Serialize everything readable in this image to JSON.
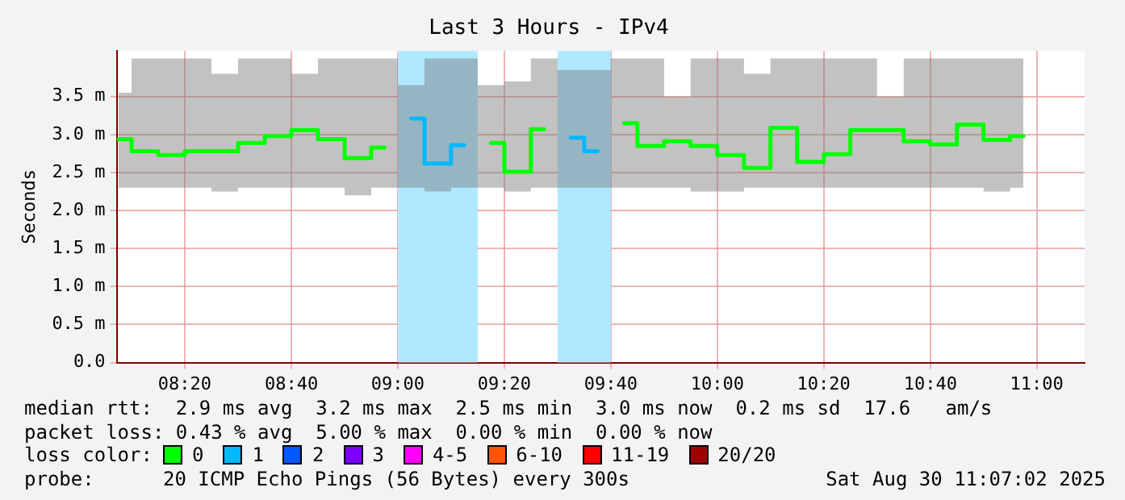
{
  "chart_data": {
    "type": "step",
    "title": "Last 3 Hours - IPv4",
    "ylabel": "Seconds",
    "x": [
      8.125,
      8.208,
      8.292,
      8.375,
      8.458,
      8.542,
      8.625,
      8.708,
      8.792,
      8.875,
      8.958,
      9.042,
      9.125,
      9.208,
      9.292,
      9.375,
      9.458,
      9.542,
      9.625,
      9.708,
      9.792,
      9.875,
      9.958,
      10.042,
      10.125,
      10.208,
      10.292,
      10.375,
      10.458,
      10.542,
      10.625,
      10.708,
      10.792,
      10.875,
      10.958
    ],
    "series": [
      {
        "color": "#00ff00",
        "values": [
          2.94,
          2.78,
          2.73,
          2.78,
          2.78,
          2.89,
          2.98,
          3.06,
          2.94,
          2.69,
          2.83,
          null,
          null,
          null,
          2.89,
          2.51,
          3.07,
          null,
          null,
          3.15,
          2.85,
          2.91,
          2.85,
          2.73,
          2.56,
          3.09,
          2.64,
          2.74,
          3.06,
          3.06,
          2.91,
          2.87,
          3.13,
          2.93,
          2.98
        ],
        "lower": [
          2.3,
          2.3,
          2.3,
          2.3,
          2.25,
          2.3,
          2.3,
          2.3,
          2.3,
          2.2,
          2.3,
          2.3,
          2.25,
          2.3,
          2.3,
          2.25,
          2.3,
          2.3,
          2.3,
          2.3,
          2.3,
          2.3,
          2.25,
          2.25,
          2.3,
          2.3,
          2.3,
          2.3,
          2.3,
          2.3,
          2.3,
          2.3,
          2.3,
          2.25,
          2.3
        ],
        "upper": [
          3.55,
          4.0,
          4.0,
          4.0,
          3.8,
          4.0,
          4.0,
          3.8,
          4.0,
          4.0,
          4.0,
          3.65,
          4.0,
          4.0,
          3.65,
          3.7,
          4.0,
          3.85,
          3.85,
          4.0,
          4.0,
          3.5,
          4.0,
          4.0,
          3.8,
          4.0,
          4.0,
          4.0,
          4.0,
          3.5,
          4.0,
          4.0,
          4.0,
          4.0,
          4.0
        ]
      },
      {
        "color": "#00b8ff",
        "values": [
          null,
          null,
          null,
          null,
          null,
          null,
          null,
          null,
          null,
          null,
          null,
          3.21,
          2.62,
          2.86,
          null,
          null,
          null,
          2.96,
          2.78,
          null,
          null,
          null,
          null,
          null,
          null,
          null,
          null,
          null,
          null,
          null,
          null,
          null,
          null,
          null,
          null
        ]
      }
    ],
    "xlim": [
      8.12,
      11.15
    ],
    "xticks": [
      {
        "value": 8.333,
        "label": "08:20"
      },
      {
        "value": 8.667,
        "label": "08:40"
      },
      {
        "value": 9,
        "label": "09:00"
      },
      {
        "value": 9.333,
        "label": "09:20"
      },
      {
        "value": 9.667,
        "label": "09:40"
      },
      {
        "value": 10,
        "label": "10:00"
      },
      {
        "value": 10.333,
        "label": "10:20"
      },
      {
        "value": 10.667,
        "label": "10:40"
      },
      {
        "value": 11,
        "label": "11:00"
      }
    ],
    "ylim": [
      0,
      4.1
    ],
    "yticks": [
      {
        "value": 0,
        "label": "0.0"
      },
      {
        "value": 0.5,
        "label": "0.5 m"
      },
      {
        "value": 1,
        "label": "1.0 m"
      },
      {
        "value": 1.5,
        "label": "1.5 m"
      },
      {
        "value": 2,
        "label": "2.0 m"
      },
      {
        "value": 2.5,
        "label": "2.5 m"
      },
      {
        "value": 3,
        "label": "3.0 m"
      },
      {
        "value": 3.5,
        "label": "3.5 m"
      }
    ],
    "bands": [
      {
        "axis": "x",
        "from": 9,
        "to": 9.25,
        "color": "#b0e8ff"
      },
      {
        "axis": "x",
        "from": 9.5,
        "to": 9.667,
        "color": "#b0e8ff"
      }
    ],
    "grid": true,
    "legend": false,
    "annotations": [
      "median rtt:  2.9 ms avg  3.2 ms max  2.5 ms min  3.0 ms now  0.2 ms sd  17.6   am/s",
      "packet loss: 0.43 % avg  5.00 % max  0.00 % min  0.00 % now",
      "loss color:",
      "0",
      "1",
      "2",
      "3",
      "4-5",
      "6-10",
      "11-19",
      "20/20",
      "probe:",
      "20 ICMP Echo Pings (56 Bytes) every 300s",
      "Sat Aug 30 11:07:02 2025"
    ]
  }
}
